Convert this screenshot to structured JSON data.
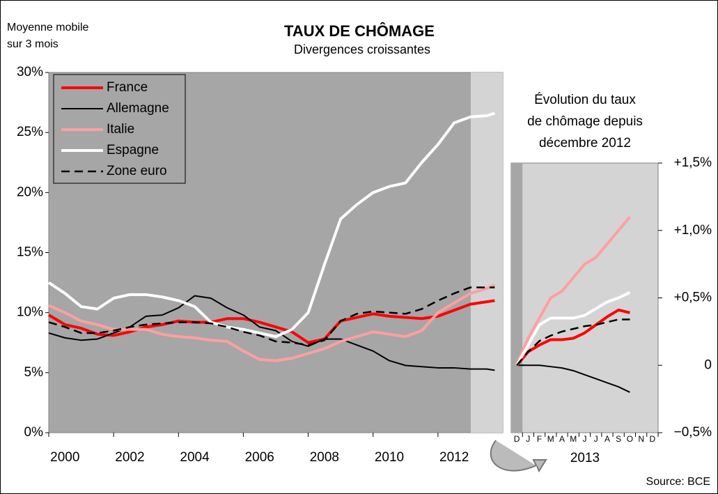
{
  "chart_data": [
    {
      "type": "line",
      "title": "TAUX DE CHÔMAGE",
      "subtitle": "Divergences croissantes",
      "y_axis_label": [
        "Moyenne mobile",
        "sur 3 mois"
      ],
      "x": [
        2000,
        2000.5,
        2001,
        2001.5,
        2002,
        2002.5,
        2003,
        2003.5,
        2004,
        2004.5,
        2005,
        2005.5,
        2006,
        2006.5,
        2007,
        2007.5,
        2008,
        2008.5,
        2009,
        2009.5,
        2010,
        2010.5,
        2011,
        2011.5,
        2012,
        2012.5,
        2013,
        2013.5,
        2013.75
      ],
      "xlim": [
        2000,
        2014
      ],
      "xticks": [
        2000,
        2002,
        2004,
        2006,
        2008,
        2010,
        2012
      ],
      "ylim": [
        0,
        30
      ],
      "yticks": [
        {
          "value": 0,
          "label": "0%"
        },
        {
          "value": 5,
          "label": "5%"
        },
        {
          "value": 10,
          "label": "10%"
        },
        {
          "value": 15,
          "label": "15%"
        },
        {
          "value": 20,
          "label": "20%"
        },
        {
          "value": 25,
          "label": "25%"
        },
        {
          "value": 30,
          "label": "30%"
        }
      ],
      "legend": "upper left",
      "series": [
        {
          "name": "France",
          "color": "#ff0000",
          "values": [
            9.8,
            9.0,
            8.7,
            8.2,
            8.1,
            8.4,
            8.8,
            9.0,
            9.3,
            9.2,
            9.2,
            9.5,
            9.5,
            9.2,
            8.8,
            8.4,
            7.5,
            7.8,
            9.3,
            9.6,
            9.9,
            9.7,
            9.6,
            9.5,
            9.7,
            10.2,
            10.7,
            10.9,
            11.0
          ]
        },
        {
          "name": "Allemagne",
          "color": "#000000",
          "values": [
            8.3,
            7.9,
            7.7,
            7.8,
            8.3,
            8.8,
            9.7,
            9.8,
            10.4,
            11.4,
            11.2,
            10.4,
            9.8,
            8.8,
            8.5,
            7.6,
            7.2,
            7.8,
            7.8,
            7.3,
            6.8,
            6.0,
            5.6,
            5.5,
            5.4,
            5.4,
            5.3,
            5.3,
            5.2
          ]
        },
        {
          "name": "Italie",
          "color": "#ff9f9f",
          "values": [
            10.6,
            10.0,
            9.3,
            9.0,
            8.6,
            8.6,
            8.6,
            8.2,
            8.0,
            7.9,
            7.7,
            7.6,
            6.8,
            6.1,
            6.0,
            6.2,
            6.6,
            7.0,
            7.6,
            8.0,
            8.4,
            8.2,
            8.0,
            8.5,
            10.0,
            10.8,
            11.6,
            12.0,
            12.3
          ]
        },
        {
          "name": "Espagne",
          "color": "#ffffff",
          "values": [
            12.5,
            11.6,
            10.5,
            10.3,
            11.2,
            11.5,
            11.5,
            11.3,
            11.0,
            10.5,
            9.2,
            8.8,
            8.6,
            8.3,
            8.0,
            8.6,
            10.0,
            14.0,
            17.8,
            19.0,
            20.0,
            20.5,
            20.8,
            22.5,
            24.0,
            25.8,
            26.3,
            26.4,
            26.6
          ]
        },
        {
          "name": "Zone euro",
          "color": "#000000",
          "style": "dashed",
          "values": [
            9.2,
            8.8,
            8.3,
            8.3,
            8.5,
            8.8,
            9.0,
            9.1,
            9.2,
            9.2,
            9.1,
            8.8,
            8.4,
            8.1,
            7.6,
            7.5,
            7.3,
            7.7,
            9.3,
            9.9,
            10.1,
            10.0,
            9.9,
            10.3,
            11.0,
            11.6,
            12.1,
            12.1,
            12.1
          ]
        }
      ]
    },
    {
      "type": "line",
      "title": [
        "Évolution du taux",
        "de chômage depuis",
        "décembre 2012"
      ],
      "x_axis_label": "2013",
      "categories": [
        "D",
        "J",
        "F",
        "M",
        "A",
        "M",
        "J",
        "J",
        "A",
        "S",
        "O",
        "N",
        "D"
      ],
      "ylim": [
        -0.5,
        1.5
      ],
      "y_axis_position": "right",
      "yticks": [
        {
          "value": -0.5,
          "label": "−0,5%"
        },
        0,
        {
          "value": 0.5,
          "label": "+0,5%"
        },
        {
          "value": 1.0,
          "label": "+1,0%"
        },
        {
          "value": 1.5,
          "label": "+1,5%"
        }
      ],
      "series": [
        {
          "name": "France",
          "color": "#ff0000",
          "values": [
            0,
            0.1,
            0.15,
            0.19,
            0.19,
            0.2,
            0.24,
            0.3,
            0.36,
            0.41,
            0.39,
            null,
            null
          ]
        },
        {
          "name": "Allemagne",
          "color": "#000000",
          "values": [
            0,
            0,
            0,
            -0.01,
            -0.02,
            -0.04,
            -0.07,
            -0.1,
            -0.13,
            -0.16,
            -0.2,
            null,
            null
          ]
        },
        {
          "name": "Italie",
          "color": "#ff9f9f",
          "values": [
            0,
            0.2,
            0.35,
            0.5,
            0.55,
            0.65,
            0.75,
            0.8,
            0.9,
            1.0,
            1.1,
            null,
            null
          ]
        },
        {
          "name": "Espagne",
          "color": "#ffffff",
          "values": [
            0,
            0.15,
            0.3,
            0.35,
            0.35,
            0.35,
            0.37,
            0.42,
            0.47,
            0.5,
            0.54,
            null,
            null
          ]
        },
        {
          "name": "Zone euro",
          "color": "#000000",
          "style": "dashed",
          "values": [
            0,
            0.1,
            0.18,
            0.22,
            0.25,
            0.27,
            0.29,
            0.3,
            0.32,
            0.34,
            0.34,
            null,
            null
          ]
        }
      ]
    }
  ],
  "source": "Source: BCE"
}
